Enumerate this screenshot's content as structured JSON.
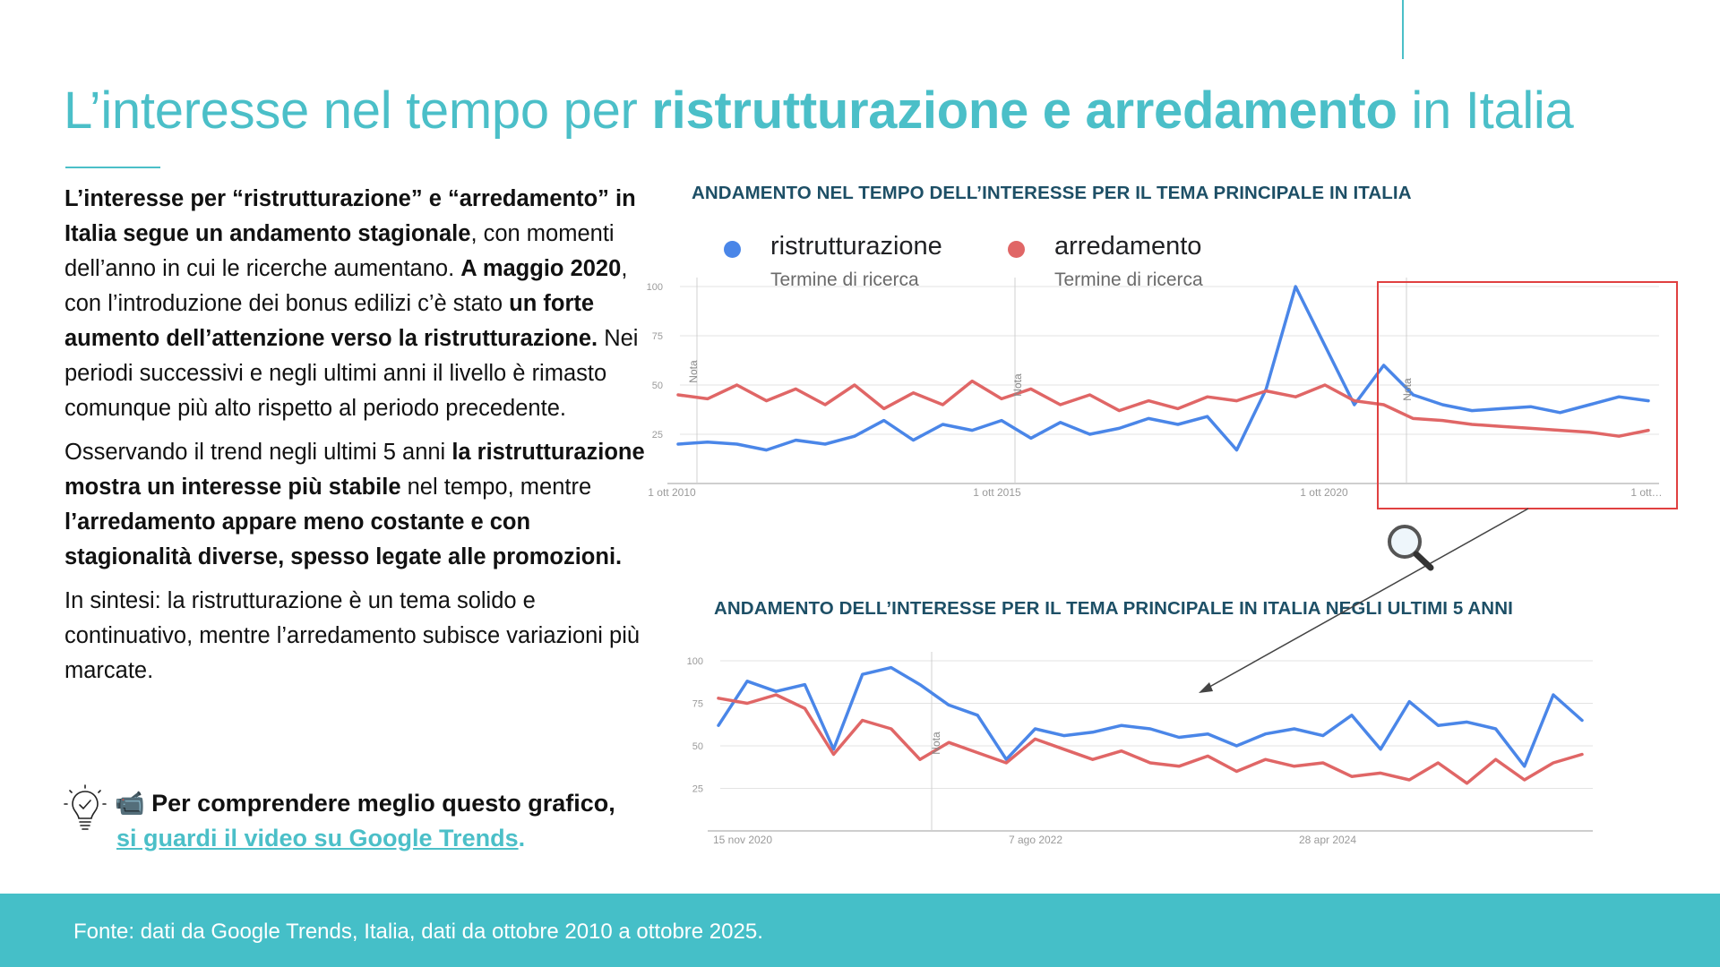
{
  "title": {
    "part1": "L’interesse nel tempo per ",
    "part2": "ristrutturazione e arredamento",
    "part3": " in Italia"
  },
  "body": {
    "p1": [
      {
        "t": "L’interesse per “ristrutturazione” e “arredamento” in Italia segue un andamento stagionale",
        "b": true
      },
      {
        "t": ", con momenti dell’anno in cui le ricerche aumentano. ",
        "b": false
      },
      {
        "t": "A maggio 2020",
        "b": true
      },
      {
        "t": ", con l’introduzione dei bonus edilizi c’è stato ",
        "b": false
      },
      {
        "t": "un forte aumento dell’attenzione verso la ristrutturazione.",
        "b": true
      },
      {
        "t": " Nei periodi successivi e negli ultimi anni il livello è rimasto comunque più alto rispetto al periodo precedente.",
        "b": false
      }
    ],
    "p2": [
      {
        "t": "Osservando il trend negli ultimi 5 anni ",
        "b": false
      },
      {
        "t": "la ristrutturazione mostra un interesse più stabile",
        "b": true
      },
      {
        "t": " nel tempo, mentre ",
        "b": false
      },
      {
        "t": "l’arredamento appare meno costante e con stagionalità diverse, spesso legate alle promozioni.",
        "b": true
      }
    ],
    "p3": [
      {
        "t": "In sintesi: la ristrutturazione è un tema solido e continuativo, mentre l’arredamento subisce variazioni più marcate.",
        "b": false
      }
    ]
  },
  "tip": {
    "camera_glyph": "📹",
    "line1": "Per comprendere meglio questo grafico,",
    "link": "si guardi il video su Google Trends",
    "dot": "."
  },
  "footer": {
    "source": "Fonte: dati da Google Trends, Italia, dati da ottobre 2010 a ottobre 2025."
  },
  "colors": {
    "accent": "#4bbfc8",
    "chart_title": "#1d4f66",
    "series_blue": "#4a86e8",
    "series_red": "#e06666",
    "highlight_box": "#e04040"
  },
  "legend": {
    "series1": {
      "name": "ristrutturazione",
      "sub": "Termine di ricerca"
    },
    "series2": {
      "name": "arredamento",
      "sub": "Termine di ricerca"
    }
  },
  "chart_data": [
    {
      "type": "line",
      "title": "ANDAMENTO NEL TEMPO DELL’INTERESSE PER IL TEMA PRINCIPALE IN ITALIA",
      "ylim": [
        0,
        100
      ],
      "y_ticks": [
        "100",
        "75",
        "50",
        "25"
      ],
      "x_tick_labels": [
        "1 ott 2010",
        "1 ott 2015",
        "1 ott 2020",
        "1 ott…"
      ],
      "annotations": [
        "Nota",
        "Nota",
        "Nota"
      ],
      "x": [
        "2010-10",
        "2011-04",
        "2011-10",
        "2012-04",
        "2012-10",
        "2013-04",
        "2013-10",
        "2014-04",
        "2014-10",
        "2015-04",
        "2015-10",
        "2016-04",
        "2016-10",
        "2017-04",
        "2017-10",
        "2018-04",
        "2018-10",
        "2019-04",
        "2019-10",
        "2020-01",
        "2020-04",
        "2020-05",
        "2020-07",
        "2020-10",
        "2021-04",
        "2021-10",
        "2022-04",
        "2022-10",
        "2023-04",
        "2023-10",
        "2024-04",
        "2024-10",
        "2025-04",
        "2025-10"
      ],
      "series": [
        {
          "name": "ristrutturazione",
          "values": [
            20,
            21,
            20,
            17,
            22,
            20,
            24,
            32,
            22,
            30,
            27,
            32,
            23,
            31,
            25,
            28,
            33,
            30,
            34,
            17,
            48,
            100,
            70,
            40,
            60,
            45,
            40,
            37,
            38,
            39,
            36,
            40,
            44,
            42
          ]
        },
        {
          "name": "arredamento",
          "values": [
            45,
            43,
            50,
            42,
            48,
            40,
            50,
            38,
            46,
            40,
            52,
            43,
            48,
            40,
            45,
            37,
            42,
            38,
            44,
            42,
            47,
            44,
            50,
            42,
            40,
            33,
            32,
            30,
            29,
            28,
            27,
            26,
            24,
            27
          ]
        }
      ]
    },
    {
      "type": "line",
      "title": "ANDAMENTO DELL’INTERESSE PER IL TEMA PRINCIPALE IN ITALIA NEGLI ULTIMI 5 ANNI",
      "ylim": [
        0,
        100
      ],
      "y_ticks": [
        "100",
        "75",
        "50",
        "25"
      ],
      "x_tick_labels": [
        "15 nov 2020",
        "7 ago 2022",
        "28 apr 2024"
      ],
      "annotations": [
        "Nota"
      ],
      "x": [
        "2020-11",
        "2021-01",
        "2021-03",
        "2021-05",
        "2021-07",
        "2021-09",
        "2021-11",
        "2022-01",
        "2022-03",
        "2022-05",
        "2022-07",
        "2022-09",
        "2022-11",
        "2023-01",
        "2023-03",
        "2023-05",
        "2023-07",
        "2023-09",
        "2023-11",
        "2024-01",
        "2024-03",
        "2024-05",
        "2024-07",
        "2024-09",
        "2024-11",
        "2025-01",
        "2025-03",
        "2025-05",
        "2025-07",
        "2025-09",
        "2025-11"
      ],
      "series": [
        {
          "name": "ristrutturazione",
          "values": [
            62,
            88,
            82,
            86,
            48,
            92,
            96,
            86,
            74,
            68,
            42,
            60,
            56,
            58,
            62,
            60,
            55,
            57,
            50,
            57,
            60,
            56,
            68,
            48,
            76,
            62,
            64,
            60,
            38,
            80,
            65
          ]
        },
        {
          "name": "arredamento",
          "values": [
            78,
            75,
            80,
            72,
            45,
            65,
            60,
            42,
            52,
            46,
            40,
            54,
            48,
            42,
            47,
            40,
            38,
            44,
            35,
            42,
            38,
            40,
            32,
            34,
            30,
            40,
            28,
            42,
            30,
            40,
            45
          ]
        }
      ]
    }
  ]
}
